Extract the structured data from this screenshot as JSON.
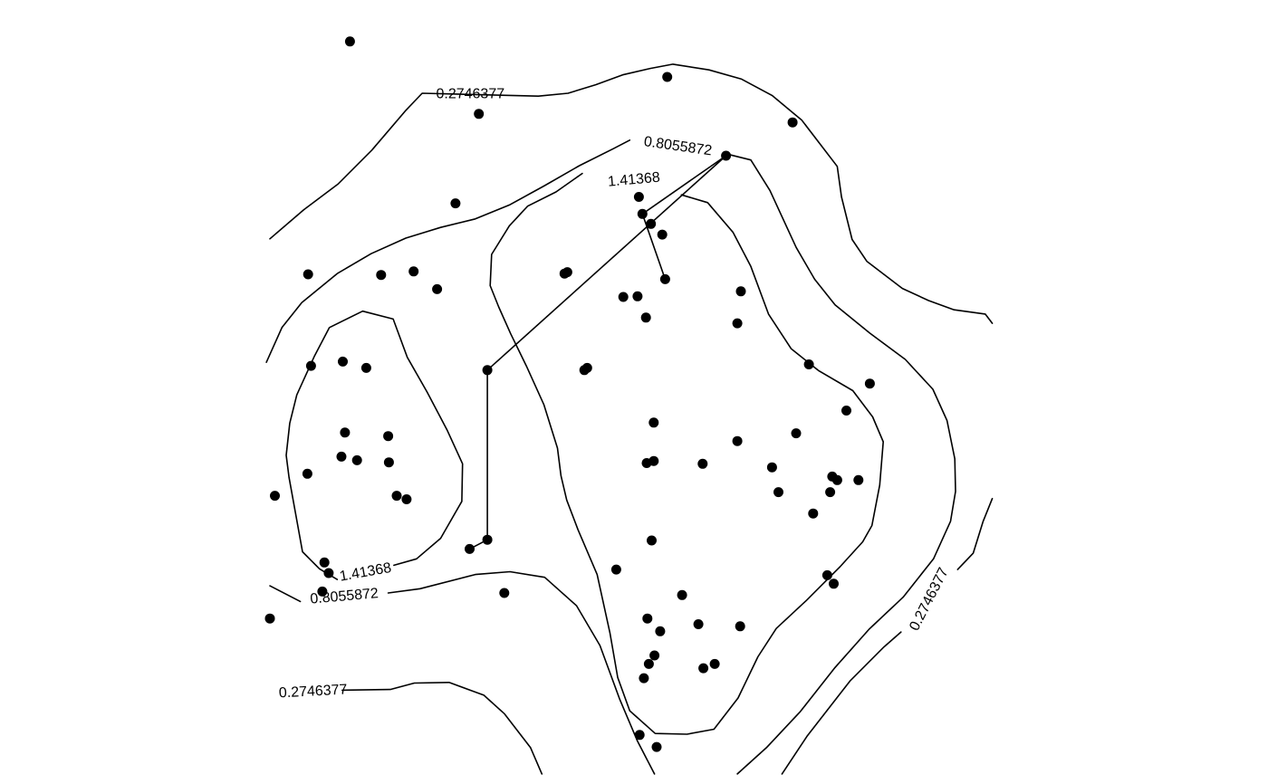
{
  "chart_data": {
    "type": "scatter",
    "title": "",
    "xlabel": "",
    "ylabel": "",
    "grid": false,
    "legend": "none",
    "xlim": [
      0,
      100
    ],
    "ylim": [
      0,
      100
    ],
    "contour_levels": [
      "0.2746377",
      "0.8055872",
      "1.41368"
    ],
    "contours": [
      {
        "level": "0.2746377",
        "points": [
          [
            0,
            73.5
          ],
          [
            4.8,
            77.6
          ],
          [
            9.6,
            81.2
          ],
          [
            14.4,
            86
          ],
          [
            19.2,
            91.6
          ],
          [
            21.5,
            94
          ],
          [
            37.9,
            93.6
          ],
          [
            42.1,
            94
          ],
          [
            46,
            95.2
          ],
          [
            49.8,
            96.6
          ],
          [
            53.7,
            97.5
          ],
          [
            56.9,
            98.1
          ],
          [
            62,
            97.3
          ],
          [
            66.6,
            96
          ],
          [
            70.9,
            93.7
          ],
          [
            75.1,
            90.2
          ],
          [
            80.1,
            83.7
          ],
          [
            80.7,
            79.4
          ],
          [
            82.2,
            73.4
          ],
          [
            84.3,
            70.3
          ],
          [
            89.3,
            66.5
          ],
          [
            93,
            64.8
          ],
          [
            96.6,
            63.5
          ],
          [
            101,
            62.9
          ],
          [
            102,
            61.6
          ]
        ]
      },
      {
        "level": "0.2746377",
        "points": [
          [
            102,
            36.9
          ],
          [
            100.7,
            33.7
          ],
          [
            99.3,
            29.2
          ],
          [
            97.1,
            26.9
          ]
        ]
      },
      {
        "level": "0.2746377",
        "points": [
          [
            89.1,
            18.1
          ],
          [
            86.7,
            16
          ],
          [
            81.9,
            11.2
          ],
          [
            75.9,
            3.5
          ],
          [
            72.3,
            -1.9
          ]
        ]
      },
      {
        "level": "0.2746377",
        "points": [
          [
            0,
            9.5
          ]
        ]
      },
      {
        "level": "0.2746377",
        "points": [
          [
            10.2,
            9.9
          ],
          [
            17,
            10
          ],
          [
            20.4,
            10.9
          ],
          [
            25.3,
            11
          ],
          [
            30.2,
            9.2
          ],
          [
            33.1,
            6.6
          ],
          [
            36.8,
            1.8
          ],
          [
            38.4,
            -1.9
          ]
        ]
      },
      {
        "level": "0.8055872",
        "points": [
          [
            -0.5,
            56.1
          ],
          [
            1.7,
            61
          ],
          [
            4.5,
            64.5
          ],
          [
            9.5,
            68.6
          ],
          [
            14.3,
            71.4
          ],
          [
            19.2,
            73.6
          ],
          [
            24.1,
            75.1
          ],
          [
            29,
            76.3
          ],
          [
            33.9,
            78.3
          ],
          [
            38.8,
            81
          ],
          [
            43.7,
            83.8
          ],
          [
            48.5,
            86.2
          ],
          [
            50.8,
            87.4
          ]
        ]
      },
      {
        "level": "0.8055872",
        "points": [
          [
            64.3,
            85.5
          ],
          [
            67.9,
            84.6
          ],
          [
            70.6,
            80.3
          ],
          [
            74.3,
            72.3
          ],
          [
            76.9,
            67.8
          ],
          [
            79.8,
            64.2
          ],
          [
            84.7,
            60.2
          ],
          [
            89.7,
            56.5
          ],
          [
            93.6,
            52.3
          ],
          [
            95.6,
            47.9
          ],
          [
            96.7,
            42.5
          ],
          [
            96.8,
            37.9
          ],
          [
            96.1,
            33.7
          ],
          [
            93.7,
            28.4
          ],
          [
            89.4,
            23
          ],
          [
            84.6,
            18.5
          ],
          [
            79.8,
            13.1
          ],
          [
            74.9,
            6.9
          ],
          [
            70.1,
            1.8
          ],
          [
            66,
            -1.9
          ]
        ]
      },
      {
        "level": "0.8055872",
        "points": [
          [
            0,
            24.6
          ],
          [
            4.3,
            22.4
          ]
        ]
      },
      {
        "level": "0.8055872",
        "points": [
          [
            16.7,
            23.6
          ],
          [
            21.2,
            24.2
          ],
          [
            29,
            26.2
          ],
          [
            33.9,
            26.6
          ],
          [
            38.8,
            25.8
          ],
          [
            43.3,
            21.8
          ],
          [
            46.6,
            16.2
          ],
          [
            49.4,
            8.6
          ],
          [
            51.9,
            2.7
          ],
          [
            54.3,
            -1.9
          ]
        ]
      },
      {
        "level": "1.41368",
        "points": [
          [
            58.1,
            79.7
          ],
          [
            61.8,
            78.6
          ],
          [
            65.4,
            74.4
          ],
          [
            67.9,
            69.6
          ],
          [
            70.4,
            62.9
          ],
          [
            73.6,
            58
          ],
          [
            77.5,
            54.9
          ],
          [
            82.3,
            52.1
          ],
          [
            85.1,
            48.4
          ],
          [
            86.6,
            44.9
          ],
          [
            86.1,
            38.8
          ],
          [
            85,
            33.1
          ],
          [
            83.7,
            30.8
          ],
          [
            80.5,
            27.3
          ],
          [
            75.8,
            22.6
          ],
          [
            71.5,
            18.6
          ],
          [
            68.9,
            14.6
          ],
          [
            66.1,
            8.8
          ],
          [
            62.7,
            4.4
          ],
          [
            58.9,
            3.7
          ],
          [
            54.4,
            3.8
          ],
          [
            50.8,
            7
          ],
          [
            49.1,
            11.7
          ],
          [
            48,
            18
          ],
          [
            46.2,
            26.2
          ],
          [
            43.5,
            32.5
          ],
          [
            41.9,
            36.7
          ],
          [
            41.1,
            40.1
          ],
          [
            40.6,
            44
          ],
          [
            38.7,
            50.1
          ],
          [
            36.2,
            55.6
          ],
          [
            34,
            60.1
          ],
          [
            32.3,
            63.9
          ],
          [
            31.1,
            66.9
          ],
          [
            31.3,
            71.3
          ],
          [
            33.8,
            75.3
          ],
          [
            36.4,
            78.1
          ],
          [
            40.4,
            80.1
          ],
          [
            44.1,
            82.7
          ]
        ]
      },
      {
        "level": "1.41368",
        "points": [
          [
            17.5,
            27.5
          ],
          [
            20.7,
            28.4
          ],
          [
            24.1,
            31.3
          ],
          [
            27.1,
            36.5
          ],
          [
            27.2,
            41.8
          ],
          [
            25,
            46.6
          ],
          [
            22.2,
            51.9
          ],
          [
            19.4,
            56.8
          ],
          [
            17.4,
            62.2
          ],
          [
            13.1,
            63.3
          ],
          [
            8.4,
            61
          ],
          [
            6.3,
            57
          ],
          [
            3.8,
            51.5
          ],
          [
            2.8,
            47.5
          ],
          [
            2.3,
            43
          ],
          [
            2.7,
            39.9
          ],
          [
            3.6,
            34.9
          ],
          [
            4.6,
            29.4
          ],
          [
            7,
            27
          ],
          [
            9.5,
            25.5
          ]
        ]
      }
    ],
    "contour_labels": [
      {
        "text": "0.2746377",
        "x": 28.3,
        "y": 93.9,
        "angle": 0
      },
      {
        "text": "0.8055872",
        "x": 57.6,
        "y": 86.5,
        "angle": 8
      },
      {
        "text": "1.41368",
        "x": 51.4,
        "y": 81.8,
        "angle": -5
      },
      {
        "text": "1.41368",
        "x": 13.5,
        "y": 26.5,
        "angle": -10
      },
      {
        "text": "0.8055872",
        "x": 10.5,
        "y": 23.1,
        "angle": -5
      },
      {
        "text": "0.2746377",
        "x": 6.1,
        "y": 9.7,
        "angle": -3
      },
      {
        "text": "0.2746377",
        "x": 93.1,
        "y": 22.7,
        "angle": -63
      }
    ],
    "links": [
      {
        "points": [
          [
            30.7,
            55
          ],
          [
            30.7,
            31.1
          ],
          [
            28.2,
            29.8
          ]
        ]
      },
      {
        "points": [
          [
            30.7,
            55
          ],
          [
            64.4,
            85.2
          ]
        ]
      },
      {
        "points": [
          [
            64.4,
            85.2
          ],
          [
            52.6,
            77
          ],
          [
            55.8,
            67.8
          ]
        ]
      }
    ],
    "points": [
      [
        11.3,
        101.3
      ],
      [
        56.1,
        96.3
      ],
      [
        29.5,
        91.1
      ],
      [
        73.8,
        89.9
      ],
      [
        26.2,
        78.5
      ],
      [
        52.1,
        79.4
      ],
      [
        64.4,
        85.2
      ],
      [
        52.6,
        77
      ],
      [
        53.8,
        75.6
      ],
      [
        55.4,
        74.1
      ],
      [
        55.8,
        67.8
      ],
      [
        41.6,
        68.6
      ],
      [
        42,
        68.8
      ],
      [
        5.4,
        68.5
      ],
      [
        15.7,
        68.4
      ],
      [
        20.3,
        68.9
      ],
      [
        23.6,
        66.4
      ],
      [
        66.5,
        66.1
      ],
      [
        49.9,
        65.3
      ],
      [
        51.9,
        65.4
      ],
      [
        53.1,
        62.4
      ],
      [
        66,
        61.6
      ],
      [
        76.1,
        55.8
      ],
      [
        5.8,
        55.6
      ],
      [
        10.3,
        56.2
      ],
      [
        13.6,
        55.3
      ],
      [
        30.7,
        55
      ],
      [
        44.4,
        55
      ],
      [
        44.8,
        55.3
      ],
      [
        84.7,
        53.1
      ],
      [
        81.4,
        49.3
      ],
      [
        74.3,
        46.1
      ],
      [
        10.6,
        46.2
      ],
      [
        16.7,
        45.7
      ],
      [
        54.2,
        47.6
      ],
      [
        66,
        45
      ],
      [
        53.2,
        41.9
      ],
      [
        54.2,
        42.2
      ],
      [
        61.1,
        41.8
      ],
      [
        10.1,
        42.8
      ],
      [
        12.3,
        42.3
      ],
      [
        16.8,
        42
      ],
      [
        5.3,
        40.4
      ],
      [
        70.9,
        41.3
      ],
      [
        79.4,
        40
      ],
      [
        80.1,
        39.5
      ],
      [
        71.8,
        37.8
      ],
      [
        83.1,
        39.5
      ],
      [
        0.7,
        37.3
      ],
      [
        17.9,
        37.3
      ],
      [
        19.3,
        36.8
      ],
      [
        30.7,
        31.1
      ],
      [
        28.2,
        29.8
      ],
      [
        79.1,
        37.8
      ],
      [
        53.9,
        31
      ],
      [
        76.7,
        34.8
      ],
      [
        48.9,
        26.9
      ],
      [
        78.7,
        26.1
      ],
      [
        79.6,
        24.9
      ],
      [
        7.7,
        27.9
      ],
      [
        8.3,
        26.4
      ],
      [
        7.4,
        23.8
      ],
      [
        33.1,
        23.6
      ],
      [
        58.2,
        23.3
      ],
      [
        0,
        20
      ],
      [
        53.3,
        20
      ],
      [
        55.1,
        18.2
      ],
      [
        60.5,
        19.2
      ],
      [
        66.4,
        18.9
      ],
      [
        54.3,
        14.8
      ],
      [
        53.5,
        13.6
      ],
      [
        61.2,
        13
      ],
      [
        62.8,
        13.6
      ],
      [
        52.8,
        11.6
      ],
      [
        54.6,
        1.9
      ],
      [
        52.2,
        3.6
      ]
    ]
  }
}
